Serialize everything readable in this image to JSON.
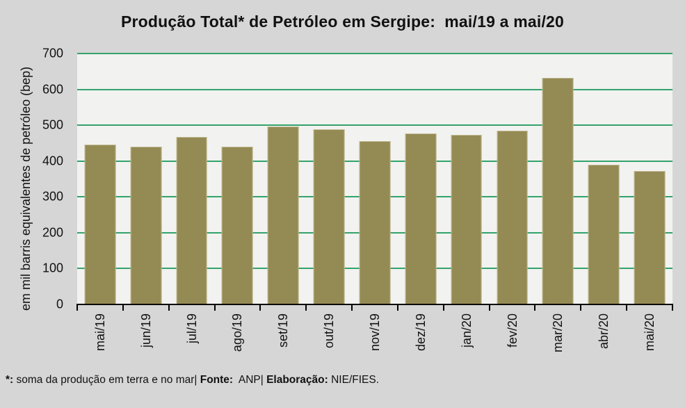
{
  "chart_data": {
    "type": "bar",
    "title": "Produção Total* de Petróleo em Sergipe:  mai/19 a mai/20",
    "xlabel": "",
    "ylabel": "em mil barris equivalentes de petróleo (bep)",
    "categories": [
      "mai/19",
      "jun/19",
      "jul/19",
      "ago/19",
      "set/19",
      "out/19",
      "nov/19",
      "dez/19",
      "jan/20",
      "fev/20",
      "mar/20",
      "abr/20",
      "mai/20"
    ],
    "values": [
      446,
      441,
      467,
      440,
      497,
      489,
      455,
      477,
      474,
      485,
      633,
      390,
      372
    ],
    "ylim": [
      0,
      700
    ],
    "ytick_step": 100,
    "yticks": [
      0,
      100,
      200,
      300,
      400,
      500,
      600,
      700
    ],
    "grid": true,
    "legend": "none",
    "bar_fraction": 0.68,
    "x_label_rotation_deg": -90,
    "colors": {
      "page_bg": "#D6D6D6",
      "plot_bg": "#F2F2F0",
      "gridline": "#33A36B",
      "bar_fill": "#948A54",
      "bar_border": "#C4BD97",
      "axis": "#000000",
      "text": "#111111"
    }
  },
  "footnote": {
    "segments": [
      {
        "text": "*:",
        "bold": true
      },
      {
        "text": " soma da produção em terra e no mar| ",
        "bold": false
      },
      {
        "text": "Fonte:",
        "bold": true
      },
      {
        "text": "  ANP| ",
        "bold": false
      },
      {
        "text": "Elaboração:",
        "bold": true
      },
      {
        "text": " NIE/FIES.",
        "bold": false
      }
    ]
  }
}
